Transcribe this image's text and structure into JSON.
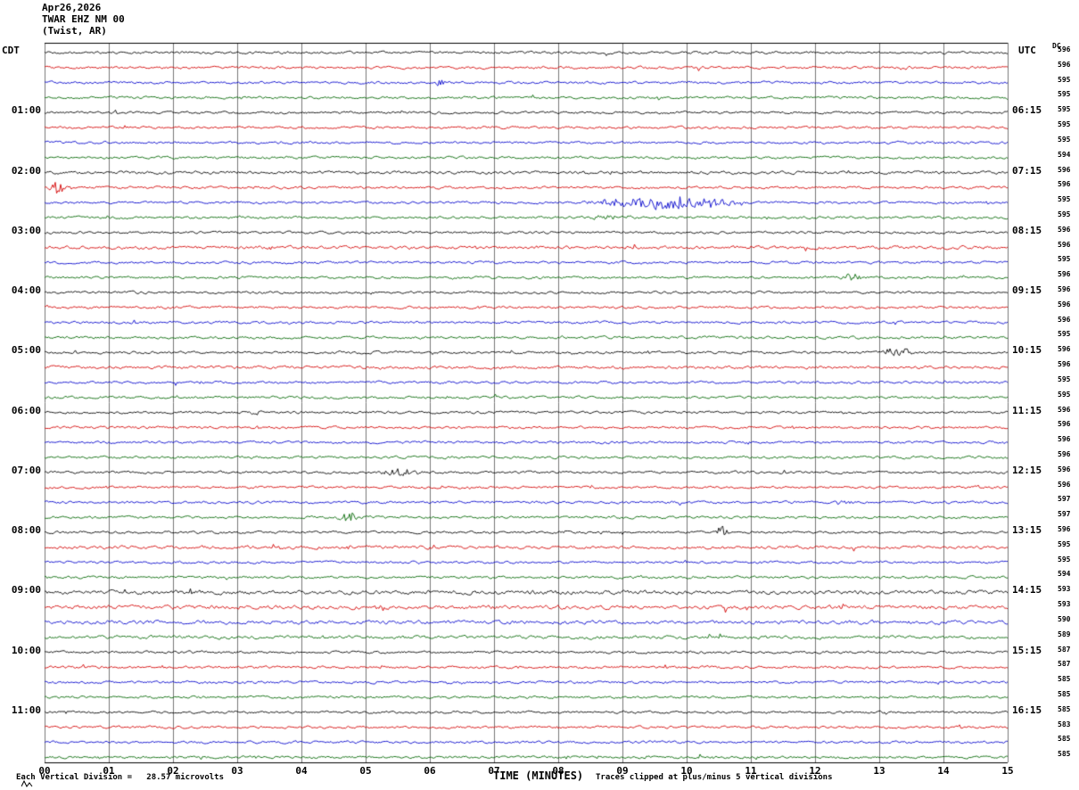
{
  "header": {
    "date": "Apr26,2026",
    "station": "TWAR EHZ NM 00",
    "location": "(Twist, AR)",
    "left_tz_label": "CDT",
    "right_tz_label": "UTC",
    "dc_label": "DC"
  },
  "footer": {
    "xaxis_title": "TIME (MINUTES)",
    "scale_note": "Each Vertical Division =   28.57 microvolts",
    "clip_note": "Traces clipped at plus/minus 5 vertical divisions"
  },
  "chart_data": {
    "type": "line",
    "subtype": "helicorder-seismogram",
    "title": "TWAR EHZ NM 00 (Twist, AR) Apr26,2026",
    "xlabel": "TIME (MINUTES)",
    "x_range_minutes": [
      0,
      15
    ],
    "x_ticks": [
      "00",
      "01",
      "02",
      "03",
      "04",
      "05",
      "06",
      "07",
      "08",
      "09",
      "10",
      "11",
      "12",
      "13",
      "14",
      "15"
    ],
    "rows": 48,
    "rows_per_hour": 4,
    "minutes_per_row": 15,
    "trace_color_cycle": [
      "#000000",
      "#d40000",
      "#0000cc",
      "#006600"
    ],
    "left_time_labels": [
      "01:00",
      "02:00",
      "03:00",
      "04:00",
      "05:00",
      "06:00",
      "07:00",
      "08:00",
      "09:00",
      "10:00",
      "11:00"
    ],
    "right_time_labels": [
      "06:15",
      "07:15",
      "08:15",
      "09:15",
      "10:15",
      "11:15",
      "12:15",
      "13:15",
      "14:15",
      "15:15",
      "16:15"
    ],
    "dc_offsets": [
      596,
      596,
      595,
      595,
      595,
      595,
      595,
      594,
      596,
      596,
      595,
      595,
      596,
      596,
      595,
      596,
      596,
      596,
      596,
      595,
      596,
      596,
      595,
      595,
      596,
      596,
      596,
      596,
      596,
      596,
      597,
      597,
      596,
      595,
      595,
      594,
      593,
      593,
      590,
      589,
      587,
      587,
      585,
      585,
      585,
      583,
      585,
      585
    ],
    "noise_amp_default": 1.1,
    "noise_amp_overrides": {
      "8": 1.3,
      "13": 1.4,
      "21": 1.3,
      "33": 1.4,
      "36": 1.8,
      "37": 1.7,
      "38": 1.6,
      "39": 1.5
    },
    "events": [
      {
        "row": 1,
        "start_min": 10.1,
        "end_min": 10.3,
        "amp": 3,
        "note": "small red spike"
      },
      {
        "row": 1,
        "start_min": 13.3,
        "end_min": 13.5,
        "amp": 3,
        "note": "small red spike"
      },
      {
        "row": 2,
        "start_min": 6.05,
        "end_min": 6.25,
        "amp": 3,
        "note": "small blue spike"
      },
      {
        "row": 3,
        "start_min": 9.5,
        "end_min": 9.7,
        "amp": 2.5,
        "note": "small green bump"
      },
      {
        "row": 9,
        "start_min": 0.05,
        "end_min": 0.35,
        "amp": 8,
        "note": "clipped red spike at line start after 02:00"
      },
      {
        "row": 10,
        "start_min": 8.3,
        "end_min": 11.0,
        "amp": 6.5,
        "note": "largest event burst, blue trace ~02:38-02:41"
      },
      {
        "row": 11,
        "start_min": 8.4,
        "end_min": 9.3,
        "amp": 1.8,
        "note": "green coda"
      },
      {
        "row": 15,
        "start_min": 12.35,
        "end_min": 12.8,
        "amp": 3.5,
        "note": "green burst before 04:00"
      },
      {
        "row": 20,
        "start_min": 13.0,
        "end_min": 13.6,
        "amp": 4.5,
        "note": "black burst near 05:00"
      },
      {
        "row": 24,
        "start_min": 3.2,
        "end_min": 3.5,
        "amp": 3.5,
        "note": "black spike at 06:00 row"
      },
      {
        "row": 28,
        "start_min": 5.2,
        "end_min": 5.95,
        "amp": 4.5,
        "note": "black burst at 07:00 row"
      },
      {
        "row": 30,
        "start_min": 12.3,
        "end_min": 12.65,
        "amp": 2.5,
        "note": "blue bump"
      },
      {
        "row": 31,
        "start_min": 4.5,
        "end_min": 4.95,
        "amp": 5,
        "note": "green burst before 08:00"
      },
      {
        "row": 32,
        "start_min": 10.45,
        "end_min": 10.65,
        "amp": 8,
        "note": "sharp black spike at 08:00 row"
      },
      {
        "row": 33,
        "start_min": 3.5,
        "end_min": 3.7,
        "amp": 4,
        "note": "red spike"
      },
      {
        "row": 37,
        "start_min": 5.15,
        "end_min": 5.4,
        "amp": 4,
        "note": "red spike after 09:00"
      }
    ]
  }
}
